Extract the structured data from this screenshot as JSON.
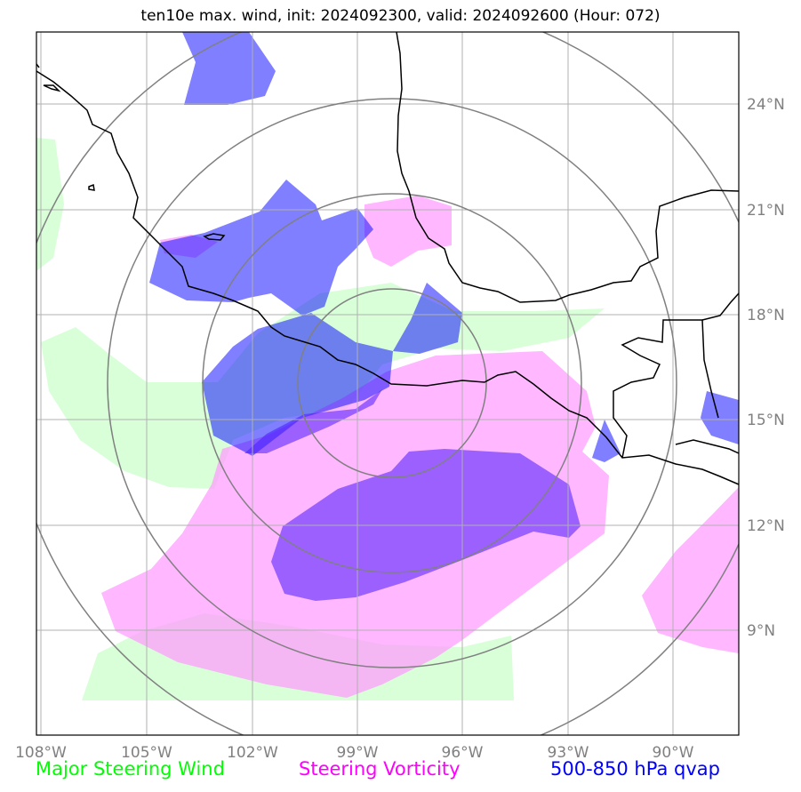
{
  "title": "ten10e max. wind, init: 2024092300, valid: 2024092600 (Hour: 072)",
  "lon_labels": [
    "108°W",
    "105°W",
    "102°W",
    "99°W",
    "96°W",
    "93°W",
    "90°W"
  ],
  "lat_labels": [
    "24°N",
    "21°N",
    "18°N",
    "15°N",
    "12°N",
    "9°N"
  ],
  "legend": [
    {
      "label": "Major Steering Wind",
      "color": "#00ff00"
    },
    {
      "label": "Steering Vorticity",
      "color": "#ff00ff"
    },
    {
      "label": "500-850 hPa qvap",
      "color": "#0000ff"
    }
  ],
  "layers": {
    "steering_wind_color": "#ccffcc",
    "steering_vorticity_color": "#ff99ff",
    "qvap_color": "#0000ff"
  }
}
